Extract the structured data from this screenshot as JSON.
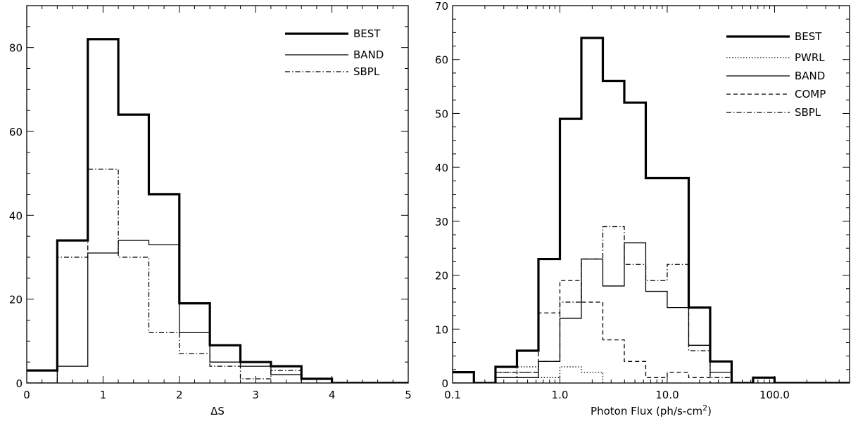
{
  "chart_data": [
    {
      "type": "histogram",
      "title": "",
      "xlabel": "ΔS",
      "ylabel": "",
      "xscale": "linear",
      "xlim": [
        0,
        5
      ],
      "ylim": [
        0,
        90
      ],
      "xticks": [
        "0",
        "1",
        "2",
        "3",
        "4",
        "5"
      ],
      "yticks": [
        "0",
        "20",
        "40",
        "60",
        "80"
      ],
      "legend_position": "top-right",
      "bin_edges": [
        0,
        0.4,
        0.8,
        1.2,
        1.6,
        2.0,
        2.4,
        2.8,
        3.2,
        3.6,
        4.0,
        4.4,
        4.8,
        5.0
      ],
      "series": [
        {
          "name": "BEST",
          "style": "thick-solid",
          "values": [
            3,
            34,
            82,
            64,
            45,
            19,
            9,
            5,
            4,
            1,
            0,
            0,
            0
          ]
        },
        {
          "name": "BAND",
          "style": "solid",
          "values": [
            0,
            4,
            31,
            34,
            33,
            12,
            5,
            4,
            2,
            1,
            0,
            0,
            0
          ]
        },
        {
          "name": "SBPL",
          "style": "dash-dot",
          "values": [
            0,
            30,
            51,
            30,
            12,
            7,
            4,
            1,
            3,
            0,
            0,
            0,
            0
          ]
        }
      ]
    },
    {
      "type": "histogram",
      "title": "",
      "xlabel": "Photon Flux (ph/s-cm",
      "xlabel_sup": "2",
      "xlabel_end": ")",
      "ylabel": "",
      "xscale": "log",
      "xlim": [
        0.1,
        500
      ],
      "ylim": [
        0,
        70
      ],
      "xticks": [
        "0.1",
        "1.0",
        "10.0",
        "100.0"
      ],
      "xtick_values": [
        0.1,
        1,
        10,
        100
      ],
      "yticks": [
        "0",
        "10",
        "20",
        "30",
        "40",
        "50",
        "60",
        "70"
      ],
      "legend_position": "top-right",
      "bin_edges": [
        0.1,
        0.158,
        0.251,
        0.398,
        0.631,
        1.0,
        1.585,
        2.512,
        3.981,
        6.31,
        10.0,
        15.85,
        25.12,
        39.81,
        63.1,
        100.0,
        158.5,
        251.2,
        500.0
      ],
      "series": [
        {
          "name": "BEST",
          "style": "thick-solid",
          "values": [
            2,
            0,
            3,
            6,
            23,
            49,
            64,
            56,
            52,
            38,
            38,
            14,
            4,
            0,
            1,
            0,
            0,
            0
          ]
        },
        {
          "name": "PWRL",
          "style": "dotted",
          "values": [
            0,
            0,
            1,
            3,
            1,
            3,
            2,
            0,
            0,
            0,
            0,
            0,
            0,
            0,
            0,
            0,
            0,
            0
          ]
        },
        {
          "name": "BAND",
          "style": "solid",
          "values": [
            0,
            0,
            1,
            1,
            4,
            12,
            23,
            18,
            26,
            17,
            14,
            7,
            2,
            0,
            0,
            0,
            0,
            0
          ]
        },
        {
          "name": "COMP",
          "style": "dashed",
          "values": [
            0,
            0,
            2,
            2,
            13,
            19,
            15,
            8,
            4,
            1,
            2,
            1,
            0,
            0,
            0,
            0,
            0,
            0
          ]
        },
        {
          "name": "SBPL",
          "style": "dash-dot",
          "values": [
            0,
            0,
            2,
            2,
            4,
            15,
            23,
            29,
            22,
            19,
            22,
            6,
            1,
            0,
            0,
            0,
            0,
            0
          ]
        }
      ]
    }
  ]
}
